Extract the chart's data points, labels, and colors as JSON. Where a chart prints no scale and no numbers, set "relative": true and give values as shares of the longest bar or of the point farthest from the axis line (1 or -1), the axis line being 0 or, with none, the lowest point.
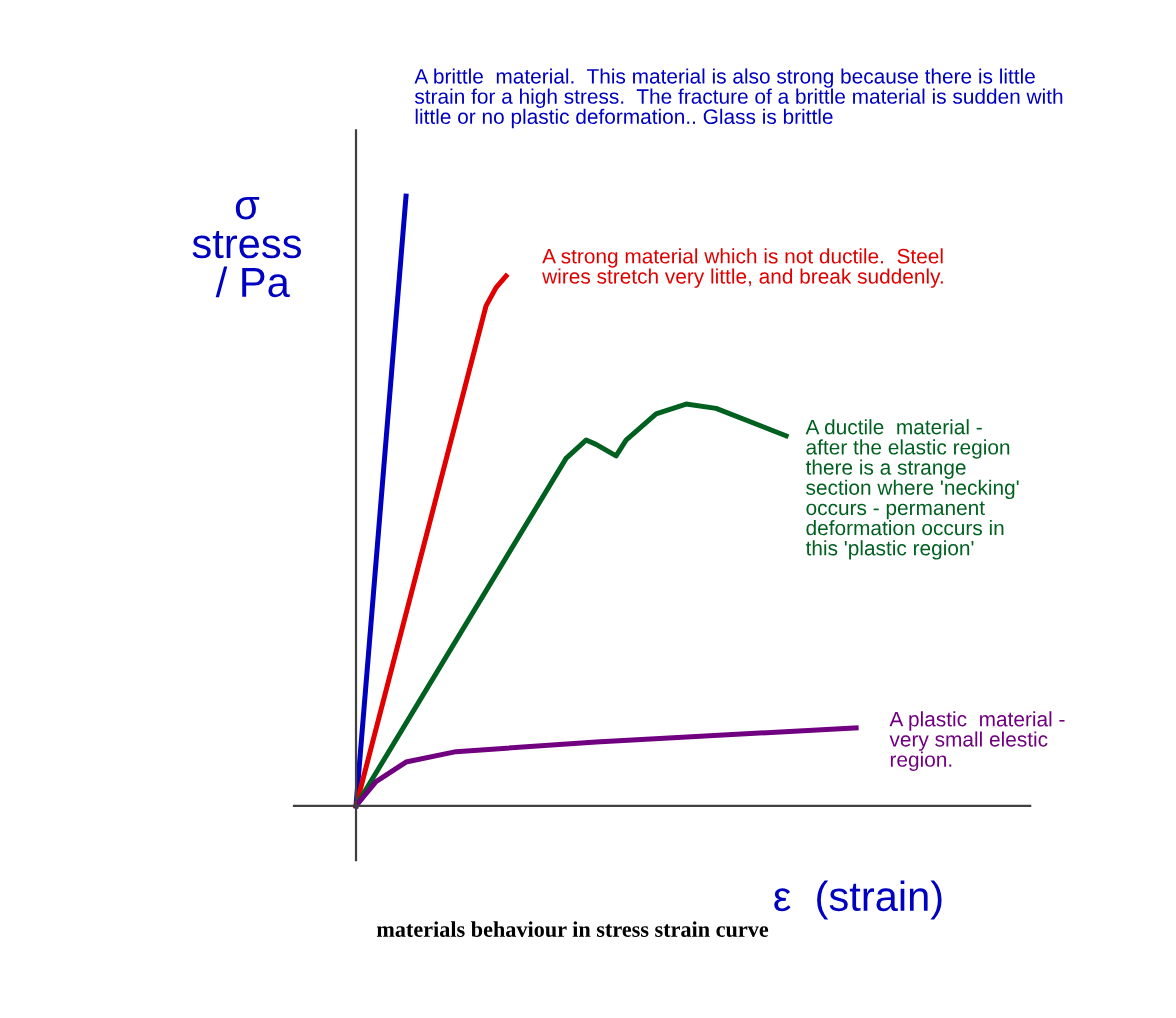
{
  "chart_data": {
    "type": "line",
    "relative": true,
    "title": "materials behaviour in stress strain curve",
    "xlabel": "ε  (strain)",
    "ylabel": "σ\nstress\n / Pa",
    "legend": false,
    "marker": "none",
    "line_style": "solid",
    "categories": [
      null,
      null,
      null,
      null,
      null,
      null,
      null,
      null,
      null,
      null,
      null,
      null,
      null,
      null,
      null,
      null,
      null,
      null,
      null,
      null,
      null,
      null,
      null,
      null,
      null,
      null,
      null,
      null,
      null,
      null,
      null,
      null,
      null,
      null,
      null,
      null,
      null,
      null,
      null,
      null,
      null,
      null,
      null,
      null,
      null,
      null,
      null,
      null,
      null,
      null,
      null
    ],
    "series": [
      {
        "color": "#0000c0",
        "values": [
          0,
          null,
          null,
          null,
          null,
          1,
          null,
          null,
          null,
          null,
          null,
          null,
          null,
          null,
          null,
          null,
          null,
          null,
          null,
          null,
          null,
          null,
          null,
          null,
          null,
          null,
          null,
          null,
          null,
          null,
          null,
          null,
          null,
          null,
          null,
          null,
          null,
          null,
          null,
          null,
          null,
          null,
          null,
          null,
          null,
          null,
          null,
          null,
          null,
          null,
          null
        ]
      },
      {
        "color": "#e00000",
        "values": [
          0,
          null,
          null,
          null,
          null,
          null,
          null,
          null,
          null,
          null,
          null,
          null,
          null,
          0.82,
          0.85,
          0.869,
          null,
          null,
          null,
          null,
          null,
          null,
          null,
          null,
          null,
          null,
          null,
          null,
          null,
          null,
          null,
          null,
          null,
          null,
          null,
          null,
          null,
          null,
          null,
          null,
          null,
          null,
          null,
          null,
          null,
          null,
          null,
          null,
          null,
          null,
          null
        ]
      },
      {
        "color": "#006020",
        "values": [
          0,
          null,
          null,
          null,
          null,
          null,
          null,
          null,
          null,
          null,
          null,
          null,
          null,
          null,
          null,
          null,
          null,
          null,
          null,
          null,
          null,
          0.57,
          null,
          0.6,
          0.593,
          null,
          0.574,
          0.6,
          null,
          null,
          0.643,
          null,
          null,
          0.659,
          null,
          null,
          0.652,
          null,
          null,
          null,
          null,
          null,
          null,
          0.607,
          null,
          null,
          null,
          null,
          null,
          null,
          null
        ]
      },
      {
        "color": "#700080",
        "values": [
          0,
          0.02,
          0.04,
          null,
          null,
          0.072,
          null,
          null,
          null,
          null,
          0.089,
          null,
          null,
          null,
          null,
          null,
          null,
          null,
          null,
          null,
          null,
          null,
          null,
          null,
          0.105,
          null,
          null,
          null,
          null,
          null,
          null,
          null,
          null,
          null,
          null,
          null,
          null,
          null,
          null,
          null,
          null,
          null,
          null,
          null,
          null,
          null,
          null,
          null,
          null,
          null,
          0.128
        ]
      }
    ],
    "annotations": [
      "A brittle  material.  This material is also strong because there is little\nstrain for a high stress.  The fracture of a brittle material is sudden with\nlittle or no plastic deformation.. Glass is brittle",
      "A strong material which is not ductile.  Steel\nwires stretch very little, and break suddenly.",
      "A ductile  material -\nafter the elastic region\nthere is a strange\nsection where 'necking'\noccurs - permanent\ndeformation occurs in\nthis 'plastic region'",
      "A plastic  material -\nvery small elestic\nregion."
    ]
  }
}
